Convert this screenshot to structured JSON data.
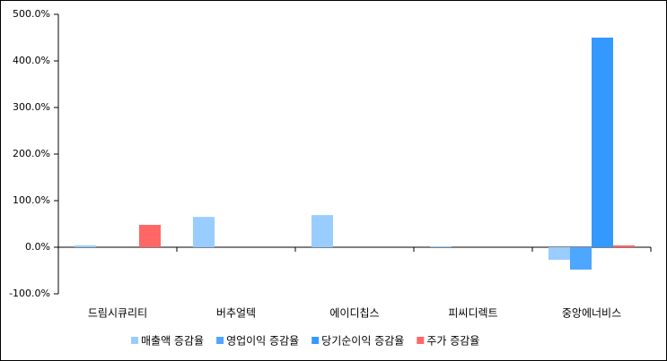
{
  "chart_data": {
    "type": "bar",
    "categories": [
      "드림시큐리티",
      "버추얼텍",
      "에이디칩스",
      "피씨디렉트",
      "중앙에너비스"
    ],
    "series": [
      {
        "name": "매출액 증감율",
        "color": "#99ccff",
        "values": [
          4,
          65,
          69,
          2,
          -27
        ]
      },
      {
        "name": "영업이익 증감율",
        "color": "#4da6ff",
        "values": [
          0,
          0,
          0,
          0,
          -48
        ]
      },
      {
        "name": "당기순이익 증감율",
        "color": "#3399ff",
        "values": [
          0,
          0,
          0,
          0,
          450
        ]
      },
      {
        "name": "주가 증감율",
        "color": "#ff6666",
        "values": [
          48,
          0,
          0,
          0,
          4
        ]
      }
    ],
    "ylim": [
      -100,
      500
    ],
    "yticks": [
      {
        "value": -100,
        "label": "-100.0%"
      },
      {
        "value": 0,
        "label": "0.0%"
      },
      {
        "value": 100,
        "label": "100.0%"
      },
      {
        "value": 200,
        "label": "200.0%"
      },
      {
        "value": 300,
        "label": "300.0%"
      },
      {
        "value": 400,
        "label": "400.0%"
      },
      {
        "value": 500,
        "label": "500.0%"
      }
    ],
    "legend": "bottom"
  }
}
